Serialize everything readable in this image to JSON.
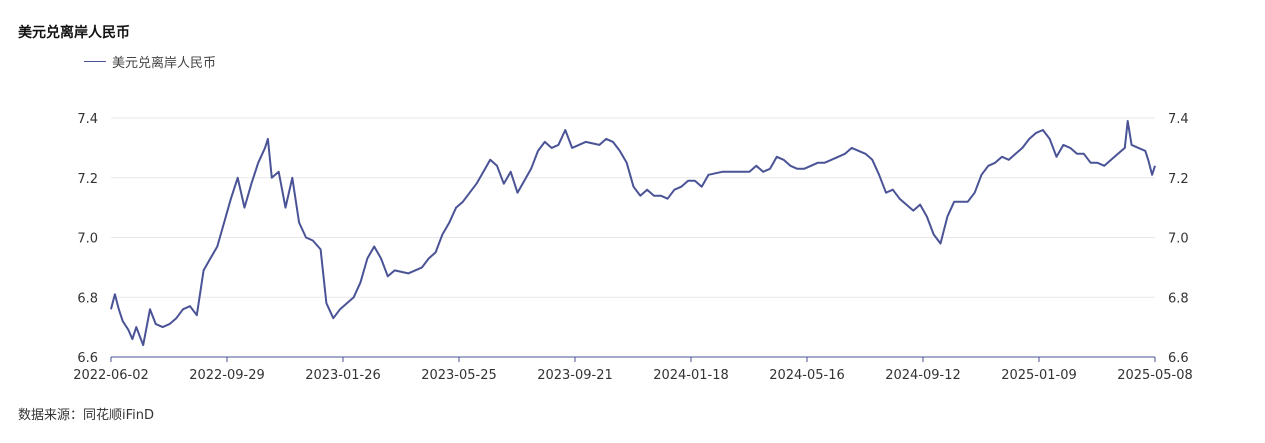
{
  "page": {
    "title": "美元兑离岸人民币",
    "source": "数据来源：同花顺iFinD"
  },
  "chart_data": {
    "type": "line",
    "title": "美元兑离岸人民币",
    "xlabel": "",
    "ylabel": "",
    "ylim": [
      6.6,
      7.4
    ],
    "yticks": [
      "6.6",
      "6.8",
      "7.0",
      "7.2",
      "7.4"
    ],
    "xticks": [
      "2022-06-02",
      "2022-09-29",
      "2023-01-26",
      "2023-05-25",
      "2023-09-21",
      "2024-01-18",
      "2024-05-16",
      "2024-09-12",
      "2025-01-09",
      "2025-05-08"
    ],
    "grid": true,
    "legend_position": "top-left",
    "dual_y_axis": true,
    "colors": {
      "line": "#4a5396",
      "grid": "#e8e8ec",
      "axis": "#4a5396"
    },
    "series": [
      {
        "name": "美元兑离岸人民币",
        "points": [
          [
            "2022-06-02",
            6.76
          ],
          [
            "2022-06-06",
            6.81
          ],
          [
            "2022-06-10",
            6.76
          ],
          [
            "2022-06-14",
            6.72
          ],
          [
            "2022-06-20",
            6.69
          ],
          [
            "2022-06-24",
            6.66
          ],
          [
            "2022-06-28",
            6.7
          ],
          [
            "2022-07-05",
            6.64
          ],
          [
            "2022-07-12",
            6.76
          ],
          [
            "2022-07-18",
            6.71
          ],
          [
            "2022-07-25",
            6.7
          ],
          [
            "2022-08-01",
            6.71
          ],
          [
            "2022-08-08",
            6.73
          ],
          [
            "2022-08-15",
            6.76
          ],
          [
            "2022-08-22",
            6.77
          ],
          [
            "2022-08-29",
            6.74
          ],
          [
            "2022-09-05",
            6.89
          ],
          [
            "2022-09-12",
            6.93
          ],
          [
            "2022-09-19",
            6.97
          ],
          [
            "2022-09-26",
            7.05
          ],
          [
            "2022-10-03",
            7.13
          ],
          [
            "2022-10-10",
            7.2
          ],
          [
            "2022-10-17",
            7.1
          ],
          [
            "2022-10-24",
            7.18
          ],
          [
            "2022-10-31",
            7.25
          ],
          [
            "2022-11-07",
            7.3
          ],
          [
            "2022-11-10",
            7.33
          ],
          [
            "2022-11-14",
            7.2
          ],
          [
            "2022-11-21",
            7.22
          ],
          [
            "2022-11-28",
            7.1
          ],
          [
            "2022-12-05",
            7.2
          ],
          [
            "2022-12-12",
            7.05
          ],
          [
            "2022-12-19",
            7.0
          ],
          [
            "2022-12-26",
            6.99
          ],
          [
            "2023-01-03",
            6.96
          ],
          [
            "2023-01-09",
            6.78
          ],
          [
            "2023-01-16",
            6.73
          ],
          [
            "2023-01-23",
            6.76
          ],
          [
            "2023-01-30",
            6.78
          ],
          [
            "2023-02-06",
            6.8
          ],
          [
            "2023-02-13",
            6.85
          ],
          [
            "2023-02-20",
            6.93
          ],
          [
            "2023-02-27",
            6.97
          ],
          [
            "2023-03-06",
            6.93
          ],
          [
            "2023-03-13",
            6.87
          ],
          [
            "2023-03-20",
            6.89
          ],
          [
            "2023-04-03",
            6.88
          ],
          [
            "2023-04-17",
            6.9
          ],
          [
            "2023-04-24",
            6.93
          ],
          [
            "2023-05-01",
            6.95
          ],
          [
            "2023-05-08",
            7.01
          ],
          [
            "2023-05-15",
            7.05
          ],
          [
            "2023-05-22",
            7.1
          ],
          [
            "2023-05-29",
            7.12
          ],
          [
            "2023-06-05",
            7.15
          ],
          [
            "2023-06-12",
            7.18
          ],
          [
            "2023-06-19",
            7.22
          ],
          [
            "2023-06-26",
            7.26
          ],
          [
            "2023-07-03",
            7.24
          ],
          [
            "2023-07-10",
            7.18
          ],
          [
            "2023-07-17",
            7.22
          ],
          [
            "2023-07-24",
            7.15
          ],
          [
            "2023-07-31",
            7.19
          ],
          [
            "2023-08-07",
            7.23
          ],
          [
            "2023-08-14",
            7.29
          ],
          [
            "2023-08-21",
            7.32
          ],
          [
            "2023-08-28",
            7.3
          ],
          [
            "2023-09-04",
            7.31
          ],
          [
            "2023-09-11",
            7.36
          ],
          [
            "2023-09-18",
            7.3
          ],
          [
            "2023-09-25",
            7.31
          ],
          [
            "2023-10-02",
            7.32
          ],
          [
            "2023-10-16",
            7.31
          ],
          [
            "2023-10-23",
            7.33
          ],
          [
            "2023-10-30",
            7.32
          ],
          [
            "2023-11-06",
            7.29
          ],
          [
            "2023-11-13",
            7.25
          ],
          [
            "2023-11-20",
            7.17
          ],
          [
            "2023-11-27",
            7.14
          ],
          [
            "2023-12-04",
            7.16
          ],
          [
            "2023-12-11",
            7.14
          ],
          [
            "2023-12-18",
            7.14
          ],
          [
            "2023-12-25",
            7.13
          ],
          [
            "2024-01-01",
            7.16
          ],
          [
            "2024-01-08",
            7.17
          ],
          [
            "2024-01-15",
            7.19
          ],
          [
            "2024-01-22",
            7.19
          ],
          [
            "2024-01-29",
            7.17
          ],
          [
            "2024-02-05",
            7.21
          ],
          [
            "2024-02-19",
            7.22
          ],
          [
            "2024-03-04",
            7.22
          ],
          [
            "2024-03-18",
            7.22
          ],
          [
            "2024-03-25",
            7.24
          ],
          [
            "2024-04-01",
            7.22
          ],
          [
            "2024-04-08",
            7.23
          ],
          [
            "2024-04-15",
            7.27
          ],
          [
            "2024-04-22",
            7.26
          ],
          [
            "2024-04-29",
            7.24
          ],
          [
            "2024-05-06",
            7.23
          ],
          [
            "2024-05-13",
            7.23
          ],
          [
            "2024-05-20",
            7.24
          ],
          [
            "2024-05-27",
            7.25
          ],
          [
            "2024-06-03",
            7.25
          ],
          [
            "2024-06-10",
            7.26
          ],
          [
            "2024-06-17",
            7.27
          ],
          [
            "2024-06-24",
            7.28
          ],
          [
            "2024-07-01",
            7.3
          ],
          [
            "2024-07-08",
            7.29
          ],
          [
            "2024-07-15",
            7.28
          ],
          [
            "2024-07-22",
            7.26
          ],
          [
            "2024-07-29",
            7.21
          ],
          [
            "2024-08-05",
            7.15
          ],
          [
            "2024-08-12",
            7.16
          ],
          [
            "2024-08-19",
            7.13
          ],
          [
            "2024-08-26",
            7.11
          ],
          [
            "2024-09-02",
            7.09
          ],
          [
            "2024-09-09",
            7.11
          ],
          [
            "2024-09-16",
            7.07
          ],
          [
            "2024-09-23",
            7.01
          ],
          [
            "2024-09-30",
            6.98
          ],
          [
            "2024-10-07",
            7.07
          ],
          [
            "2024-10-14",
            7.12
          ],
          [
            "2024-10-21",
            7.12
          ],
          [
            "2024-10-28",
            7.12
          ],
          [
            "2024-11-04",
            7.15
          ],
          [
            "2024-11-11",
            7.21
          ],
          [
            "2024-11-18",
            7.24
          ],
          [
            "2024-11-25",
            7.25
          ],
          [
            "2024-12-02",
            7.27
          ],
          [
            "2024-12-09",
            7.26
          ],
          [
            "2024-12-16",
            7.28
          ],
          [
            "2024-12-23",
            7.3
          ],
          [
            "2024-12-30",
            7.33
          ],
          [
            "2025-01-06",
            7.35
          ],
          [
            "2025-01-13",
            7.36
          ],
          [
            "2025-01-20",
            7.33
          ],
          [
            "2025-01-27",
            7.27
          ],
          [
            "2025-02-03",
            7.31
          ],
          [
            "2025-02-10",
            7.3
          ],
          [
            "2025-02-17",
            7.28
          ],
          [
            "2025-02-24",
            7.28
          ],
          [
            "2025-03-03",
            7.25
          ],
          [
            "2025-03-10",
            7.25
          ],
          [
            "2025-03-17",
            7.24
          ],
          [
            "2025-03-24",
            7.26
          ],
          [
            "2025-03-31",
            7.28
          ],
          [
            "2025-04-07",
            7.3
          ],
          [
            "2025-04-10",
            7.39
          ],
          [
            "2025-04-14",
            7.31
          ],
          [
            "2025-04-21",
            7.3
          ],
          [
            "2025-04-28",
            7.29
          ],
          [
            "2025-05-01",
            7.26
          ],
          [
            "2025-05-05",
            7.21
          ],
          [
            "2025-05-08",
            7.24
          ]
        ]
      }
    ]
  }
}
